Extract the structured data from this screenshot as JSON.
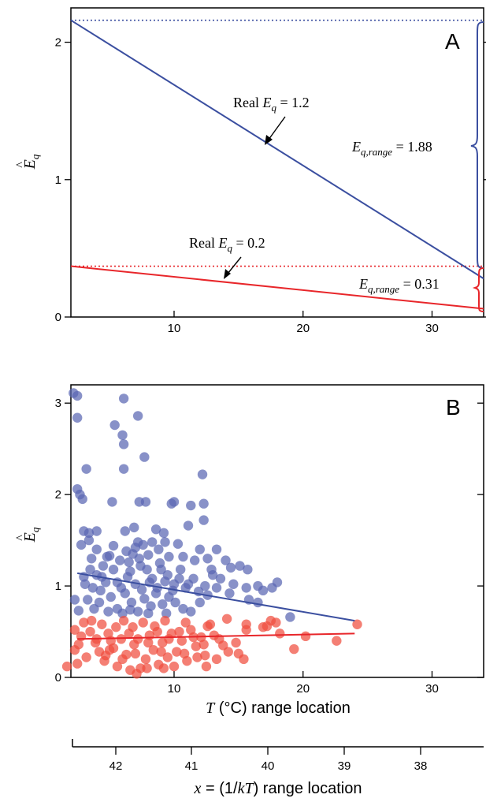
{
  "colors": {
    "blue": "#3b4fa0",
    "red": "#e8262a",
    "blue_point": "#5a67b3",
    "red_point": "#f04e3e"
  },
  "chart_data": [
    {
      "panel": "A",
      "type": "line",
      "xlim": [
        2,
        34
      ],
      "ylim": [
        0,
        2.25
      ],
      "xticks": [
        10,
        20,
        30
      ],
      "yticks": [
        0,
        1,
        2
      ],
      "ylabel": "Ê_q",
      "series": [
        {
          "key": "blue",
          "x": [
            2,
            34
          ],
          "y": [
            2.16,
            0.28
          ]
        },
        {
          "key": "red",
          "x": [
            2,
            34
          ],
          "y": [
            0.37,
            0.06
          ]
        }
      ],
      "reference_lines": [
        {
          "key": "blue",
          "y": 2.16,
          "style": "dotted"
        },
        {
          "key": "red",
          "y": 0.37,
          "style": "dotted"
        }
      ],
      "annotations": {
        "real_high": {
          "prefix": "Real ",
          "var": "E",
          "sub": "q",
          "suffix": " = 1.2"
        },
        "real_low": {
          "prefix": "Real ",
          "var": "E",
          "sub": "q",
          "suffix": " = 0.2"
        },
        "range_high": {
          "var": "E",
          "sub": "q,range",
          "suffix": " = 1.88"
        },
        "range_low": {
          "var": "E",
          "sub": "q,range",
          "suffix": " = 0.31"
        }
      }
    },
    {
      "panel": "B",
      "type": "scatter",
      "xlim": [
        2,
        34
      ],
      "ylim": [
        0,
        3.2
      ],
      "xticks": [
        10,
        20,
        30
      ],
      "yticks": [
        0,
        1,
        2,
        3
      ],
      "ylabel": "Ê_q",
      "xlabel": {
        "var": "T",
        "rest": " (°C) range location"
      },
      "fit_lines": [
        {
          "key": "blue",
          "x": [
            2.5,
            24
          ],
          "y": [
            1.14,
            0.62
          ]
        },
        {
          "key": "red",
          "x": [
            2.5,
            24
          ],
          "y": [
            0.42,
            0.48
          ]
        }
      ],
      "series": [
        {
          "key": "blue",
          "points": [
            [
              2.2,
              3.11
            ],
            [
              2.5,
              3.08
            ],
            [
              2.5,
              2.84
            ],
            [
              6.1,
              3.05
            ],
            [
              7.2,
              2.86
            ],
            [
              5.4,
              2.76
            ],
            [
              6.0,
              2.65
            ],
            [
              6.1,
              2.55
            ],
            [
              3.2,
              2.28
            ],
            [
              6.1,
              2.28
            ],
            [
              7.7,
              2.41
            ],
            [
              12.2,
              2.22
            ],
            [
              2.5,
              2.06
            ],
            [
              2.7,
              2.0
            ],
            [
              2.9,
              1.95
            ],
            [
              5.2,
              1.92
            ],
            [
              7.3,
              1.92
            ],
            [
              7.8,
              1.92
            ],
            [
              9.8,
              1.9
            ],
            [
              10.0,
              1.92
            ],
            [
              11.3,
              1.88
            ],
            [
              12.3,
              1.9
            ],
            [
              3.4,
              1.58
            ],
            [
              4.0,
              1.6
            ],
            [
              6.2,
              1.6
            ],
            [
              6.9,
              1.64
            ],
            [
              8.6,
              1.62
            ],
            [
              9.2,
              1.58
            ],
            [
              11.1,
              1.66
            ],
            [
              12.3,
              1.72
            ],
            [
              2.8,
              1.45
            ],
            [
              3.0,
              1.6
            ],
            [
              3.4,
              1.5
            ],
            [
              4.0,
              1.4
            ],
            [
              5.3,
              1.44
            ],
            [
              7.2,
              1.48
            ],
            [
              7.6,
              1.45
            ],
            [
              8.3,
              1.48
            ],
            [
              9.3,
              1.48
            ],
            [
              10.3,
              1.46
            ],
            [
              12.0,
              1.4
            ],
            [
              13.3,
              1.4
            ],
            [
              14.0,
              1.28
            ],
            [
              12.6,
              1.3
            ],
            [
              14.4,
              1.2
            ],
            [
              15.1,
              1.22
            ],
            [
              15.7,
              1.18
            ],
            [
              16.5,
              1.0
            ],
            [
              16.9,
              0.95
            ],
            [
              17.6,
              0.98
            ],
            [
              18.0,
              1.04
            ],
            [
              19.0,
              0.66
            ],
            [
              16.5,
              0.82
            ],
            [
              15.8,
              0.85
            ],
            [
              14.3,
              0.92
            ],
            [
              13.3,
              0.98
            ],
            [
              10.7,
              0.75
            ],
            [
              11.3,
              0.72
            ],
            [
              12.0,
              0.82
            ],
            [
              2.3,
              0.85
            ],
            [
              2.6,
              0.73
            ],
            [
              3.0,
              1.1
            ],
            [
              4.0,
              1.12
            ],
            [
              3.6,
              1.3
            ],
            [
              4.5,
              1.22
            ],
            [
              5.0,
              1.33
            ],
            [
              3.3,
              0.85
            ],
            [
              3.8,
              0.75
            ],
            [
              4.3,
              0.95
            ],
            [
              5.6,
              1.04
            ],
            [
              6.5,
              1.26
            ],
            [
              6.8,
              1.35
            ],
            [
              7.3,
              1.3
            ],
            [
              7.9,
              1.18
            ],
            [
              8.3,
              1.08
            ],
            [
              8.9,
              1.25
            ],
            [
              9.5,
              1.12
            ],
            [
              10.0,
              1.02
            ],
            [
              10.5,
              1.18
            ],
            [
              10.9,
              0.98
            ],
            [
              11.5,
              1.08
            ],
            [
              11.9,
              0.94
            ],
            [
              12.4,
              1.0
            ],
            [
              13.0,
              1.12
            ],
            [
              13.6,
              1.08
            ],
            [
              14.6,
              1.02
            ],
            [
              15.6,
              0.98
            ],
            [
              5.1,
              0.88
            ],
            [
              5.6,
              0.75
            ],
            [
              6.2,
              0.92
            ],
            [
              6.7,
              0.82
            ],
            [
              7.2,
              0.72
            ],
            [
              7.7,
              0.86
            ],
            [
              8.2,
              0.78
            ],
            [
              8.6,
              0.92
            ],
            [
              9.1,
              0.8
            ],
            [
              9.6,
              0.88
            ],
            [
              10.1,
              0.82
            ],
            [
              4.7,
              1.04
            ],
            [
              5.9,
              0.98
            ],
            [
              6.4,
              1.1
            ],
            [
              7.0,
              1.02
            ],
            [
              7.5,
              0.96
            ],
            [
              8.1,
              1.04
            ],
            [
              8.7,
              0.98
            ],
            [
              9.3,
              1.05
            ],
            [
              9.9,
              0.95
            ],
            [
              4.2,
              0.82
            ],
            [
              4.9,
              0.72
            ],
            [
              6.0,
              0.7
            ],
            [
              6.6,
              0.74
            ],
            [
              8.0,
              0.7
            ],
            [
              9.4,
              0.7
            ],
            [
              3.1,
              1.02
            ],
            [
              3.7,
              0.98
            ],
            [
              4.4,
              1.1
            ],
            [
              5.3,
              1.18
            ],
            [
              5.8,
              1.28
            ],
            [
              6.3,
              1.38
            ],
            [
              7.4,
              1.22
            ],
            [
              8.0,
              1.34
            ],
            [
              8.8,
              1.4
            ],
            [
              9.6,
              1.32
            ],
            [
              10.7,
              1.32
            ],
            [
              11.6,
              1.28
            ],
            [
              12.9,
              1.18
            ],
            [
              3.5,
              1.18
            ],
            [
              4.8,
              1.32
            ],
            [
              6.6,
              1.16
            ],
            [
              7.0,
              1.42
            ],
            [
              9.0,
              1.18
            ],
            [
              10.4,
              1.08
            ],
            [
              11.1,
              1.02
            ],
            [
              12.6,
              0.9
            ]
          ]
        },
        {
          "key": "red",
          "points": [
            [
              1.7,
              0.12
            ],
            [
              2.3,
              0.52
            ],
            [
              2.3,
              0.3
            ],
            [
              2.8,
              0.45
            ],
            [
              3.2,
              0.22
            ],
            [
              3.5,
              0.5
            ],
            [
              3.9,
              0.38
            ],
            [
              4.2,
              0.28
            ],
            [
              4.6,
              0.18
            ],
            [
              4.9,
              0.48
            ],
            [
              5.3,
              0.32
            ],
            [
              5.6,
              0.12
            ],
            [
              5.9,
              0.42
            ],
            [
              6.3,
              0.25
            ],
            [
              6.6,
              0.08
            ],
            [
              6.9,
              0.36
            ],
            [
              7.1,
              0.04
            ],
            [
              7.4,
              0.1
            ],
            [
              7.8,
              0.2
            ],
            [
              8.1,
              0.46
            ],
            [
              8.4,
              0.3
            ],
            [
              8.8,
              0.14
            ],
            [
              9.1,
              0.38
            ],
            [
              9.5,
              0.22
            ],
            [
              9.8,
              0.48
            ],
            [
              10.2,
              0.28
            ],
            [
              10.6,
              0.4
            ],
            [
              11.0,
              0.18
            ],
            [
              11.3,
              0.52
            ],
            [
              11.7,
              0.34
            ],
            [
              12.1,
              0.44
            ],
            [
              12.4,
              0.24
            ],
            [
              12.8,
              0.58
            ],
            [
              13.5,
              0.42
            ],
            [
              13.8,
              0.35
            ],
            [
              14.2,
              0.28
            ],
            [
              14.8,
              0.38
            ],
            [
              15.0,
              0.26
            ],
            [
              15.4,
              0.2
            ],
            [
              15.6,
              0.52
            ],
            [
              16.9,
              0.55
            ],
            [
              17.2,
              0.56
            ],
            [
              17.5,
              0.62
            ],
            [
              17.9,
              0.6
            ],
            [
              18.2,
              0.48
            ],
            [
              19.3,
              0.31
            ],
            [
              20.2,
              0.45
            ],
            [
              22.6,
              0.4
            ],
            [
              24.2,
              0.58
            ],
            [
              3.0,
              0.6
            ],
            [
              4.4,
              0.58
            ],
            [
              6.1,
              0.62
            ],
            [
              7.6,
              0.6
            ],
            [
              9.3,
              0.62
            ],
            [
              10.9,
              0.6
            ],
            [
              12.6,
              0.56
            ],
            [
              14.1,
              0.64
            ],
            [
              15.6,
              0.58
            ],
            [
              2.6,
              0.36
            ],
            [
              4.0,
              0.42
            ],
            [
              5.1,
              0.4
            ],
            [
              6.5,
              0.48
            ],
            [
              7.2,
              0.42
            ],
            [
              8.0,
              0.38
            ],
            [
              8.7,
              0.5
            ],
            [
              9.6,
              0.42
            ],
            [
              10.4,
              0.5
            ],
            [
              11.5,
              0.44
            ],
            [
              12.3,
              0.36
            ],
            [
              13.1,
              0.46
            ],
            [
              6.0,
              0.2
            ],
            [
              7.0,
              0.26
            ],
            [
              7.9,
              0.1
            ],
            [
              9.0,
              0.28
            ],
            [
              10.0,
              0.12
            ],
            [
              10.8,
              0.26
            ],
            [
              11.8,
              0.22
            ],
            [
              12.5,
              0.12
            ],
            [
              13.3,
              0.2
            ],
            [
              5.0,
              0.3
            ],
            [
              5.5,
              0.55
            ],
            [
              6.8,
              0.55
            ],
            [
              8.5,
              0.56
            ],
            [
              9.2,
              0.1
            ],
            [
              3.6,
              0.62
            ],
            [
              4.7,
              0.24
            ],
            [
              2.5,
              0.15
            ]
          ]
        }
      ]
    },
    {
      "panel": "secondary-axis",
      "type": "axis",
      "ticks": [
        "42",
        "41",
        "40",
        "39",
        "38"
      ],
      "xlabel": {
        "var_x": "x",
        "mid": " = (1/",
        "var_k": "kT",
        "rest": ") range location"
      }
    }
  ]
}
